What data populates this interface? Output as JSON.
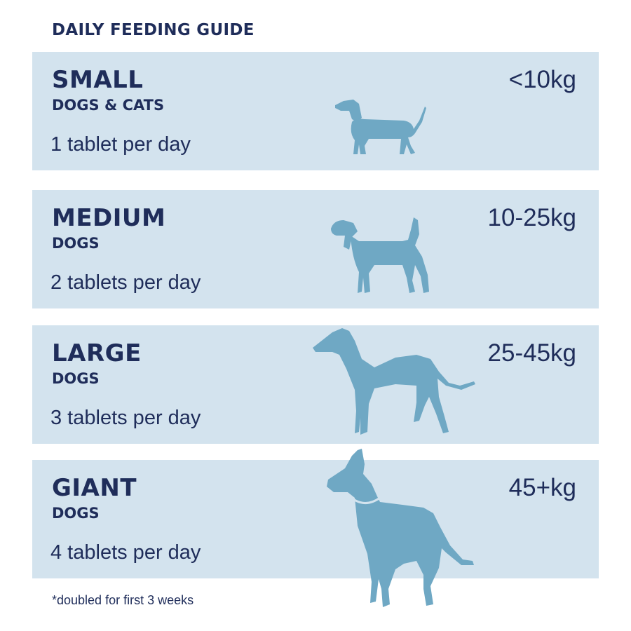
{
  "heading": "DAILY FEEDING GUIDE",
  "colors": {
    "text": "#1f2d5a",
    "panel": "#d3e3ee",
    "silhouette": "#6fa8c4"
  },
  "rows": [
    {
      "size": "SMALL",
      "subtitle": "DOGS & CATS",
      "dose": "1 tablet per day",
      "weight": "<10kg",
      "icon": "dachshund-icon"
    },
    {
      "size": "MEDIUM",
      "subtitle": "DOGS",
      "dose": "2 tablets per day",
      "weight": "10-25kg",
      "icon": "beagle-icon"
    },
    {
      "size": "LARGE",
      "subtitle": "DOGS",
      "dose": "3 tablets per day",
      "weight": "25-45kg",
      "icon": "greyhound-icon"
    },
    {
      "size": "GIANT",
      "subtitle": "DOGS",
      "dose": "4 tablets per day",
      "weight": "45+kg",
      "icon": "great-dane-icon"
    }
  ],
  "footnote": "*doubled for first 3 weeks"
}
